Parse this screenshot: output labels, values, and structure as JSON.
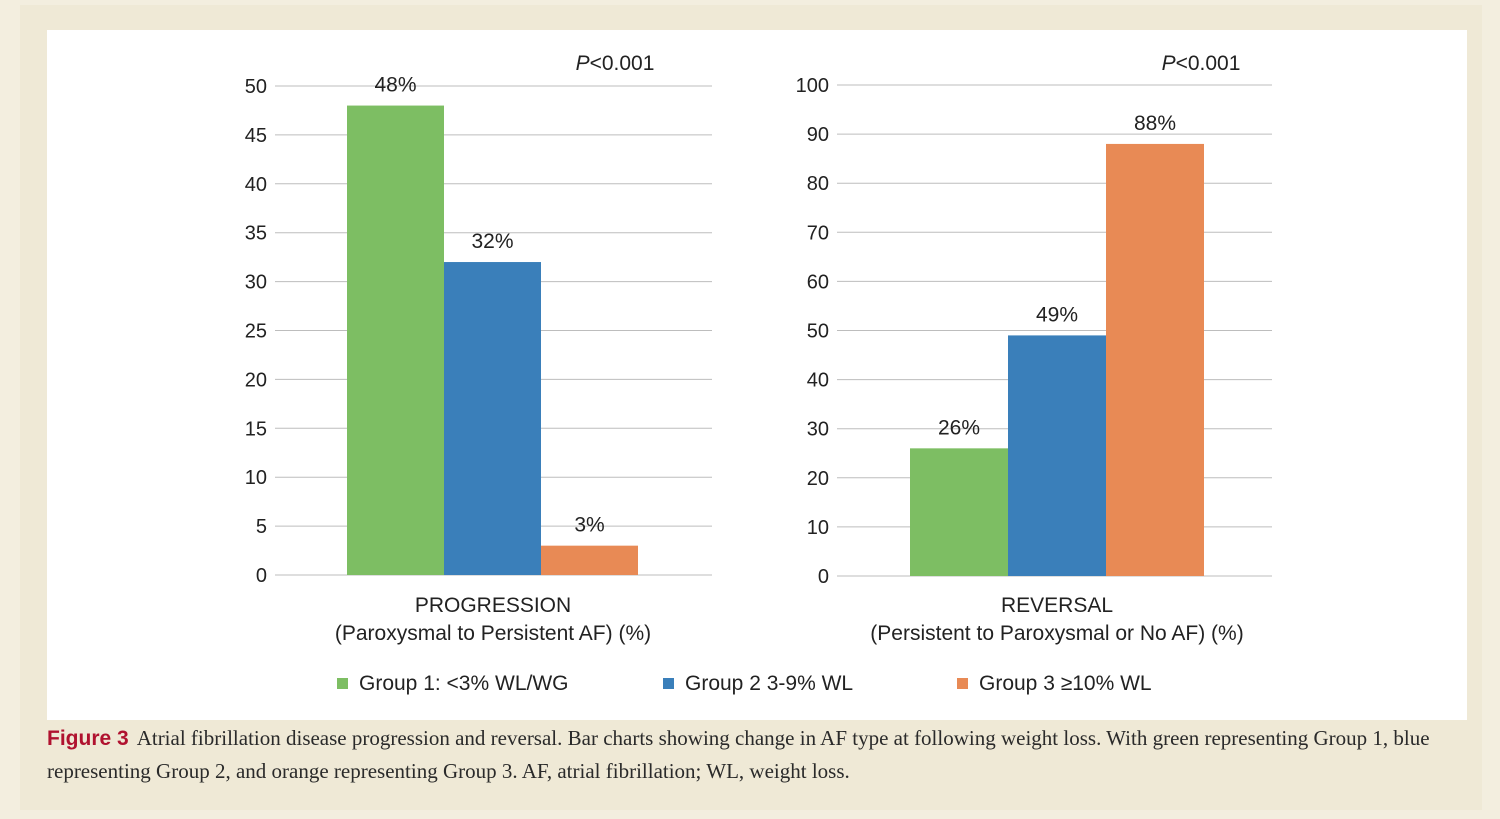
{
  "legend": [
    {
      "label": "Group 1: <3% WL/WG",
      "color": "#7dbe63"
    },
    {
      "label": "Group 2 3-9% WL",
      "color": "#3a7fba"
    },
    {
      "label": "Group 3 ≥10% WL",
      "color": "#e88a55"
    }
  ],
  "chart_data": [
    {
      "type": "bar",
      "title": "",
      "xlabel": "PROGRESSION",
      "xlabel_sub": "(Paroxysmal to Persistent AF) (%)",
      "ylim": [
        0,
        50
      ],
      "yticks": [
        0,
        5,
        10,
        15,
        20,
        25,
        30,
        35,
        40,
        45,
        50
      ],
      "annotation": "P<0.001",
      "grid": true,
      "series": [
        {
          "name": "Group 1: <3% WL/WG",
          "values": [
            48
          ],
          "label": "48%",
          "color": "#7dbe63"
        },
        {
          "name": "Group 2 3-9% WL",
          "values": [
            32
          ],
          "label": "32%",
          "color": "#3a7fba"
        },
        {
          "name": "Group 3 ≥10% WL",
          "values": [
            3
          ],
          "label": "3%",
          "color": "#e88a55"
        }
      ]
    },
    {
      "type": "bar",
      "title": "",
      "xlabel": "REVERSAL",
      "xlabel_sub": "(Persistent to Paroxysmal or No AF) (%)",
      "ylim": [
        0,
        100
      ],
      "yticks": [
        0,
        10,
        20,
        30,
        40,
        50,
        60,
        70,
        80,
        90,
        100
      ],
      "annotation": "P<0.001",
      "grid": true,
      "series": [
        {
          "name": "Group 1: <3% WL/WG",
          "values": [
            26
          ],
          "label": "26%",
          "color": "#7dbe63"
        },
        {
          "name": "Group 2 3-9% WL",
          "values": [
            49
          ],
          "label": "49%",
          "color": "#3a7fba"
        },
        {
          "name": "Group 3 ≥10% WL",
          "values": [
            88
          ],
          "label": "88%",
          "color": "#e88a55"
        }
      ]
    }
  ],
  "caption": {
    "label": "Figure 3",
    "text": "Atrial fibrillation disease progression and reversal. Bar charts showing change in AF type at following weight loss. With green representing Group 1, blue representing Group 2, and orange representing Group 3. AF, atrial fibrillation; WL, weight loss."
  }
}
